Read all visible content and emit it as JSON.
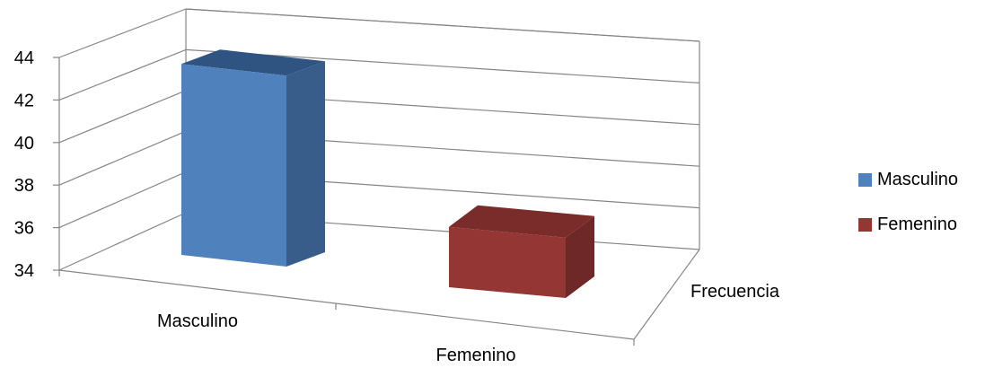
{
  "chart_data": {
    "type": "bar",
    "categories": [
      "Masculino",
      "Femenino"
    ],
    "values": [
      43.5,
      37
    ],
    "depth_label": "Frecuencia",
    "y_ticks": [
      "34",
      "36",
      "38",
      "40",
      "42",
      "44"
    ],
    "ylim": [
      34,
      44
    ],
    "grid": true,
    "legend_placement": "right",
    "series_colors": [
      "#4f81bd",
      "#943634"
    ],
    "legend": [
      {
        "label": "Masculino",
        "color": "#4f81bd"
      },
      {
        "label": "Femenino",
        "color": "#943634"
      }
    ]
  }
}
